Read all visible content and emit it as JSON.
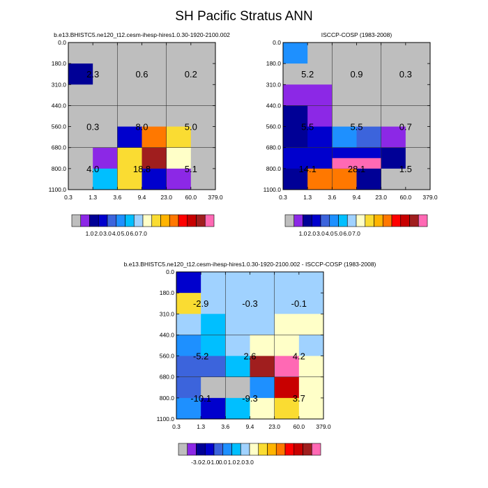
{
  "figure_title": "SH Pacific Stratus ANN",
  "chart_data": [
    {
      "type": "heatmap",
      "title": "b.e13.BHISTC5.ne120_t12.cesm-ihesp-hires1.0.30-1920-2100.002",
      "x_tick_labels": [
        "0.3",
        "1.3",
        "3.6",
        "9.4",
        "23.0",
        "60.0",
        "379.0"
      ],
      "y_tick_labels": [
        "0.0",
        "180.0",
        "310.0",
        "440.0",
        "560.0",
        "680.0",
        "800.0",
        "1100.0"
      ],
      "cells": [
        [
          "grey",
          "grey",
          "grey",
          "grey",
          "grey",
          "grey"
        ],
        [
          "navy",
          "grey",
          "grey",
          "grey",
          "grey",
          "grey"
        ],
        [
          "grey",
          "grey",
          "grey",
          "grey",
          "grey",
          "grey"
        ],
        [
          "grey",
          "grey",
          "grey",
          "grey",
          "grey",
          "grey"
        ],
        [
          "grey",
          "grey",
          "blue",
          "orange",
          "gold",
          "grey"
        ],
        [
          "grey",
          "purple",
          "gold",
          "darkred",
          "lightyellow",
          "grey"
        ],
        [
          "grey",
          "skyblue",
          "gold",
          "blue",
          "purple",
          "grey"
        ]
      ],
      "region_values": [
        [
          "2.3",
          "0.6",
          "0.2"
        ],
        [
          "0.3",
          "8.0",
          "5.0"
        ],
        [
          "4.0",
          "18.8",
          "5.1"
        ]
      ],
      "colorbar": {
        "colors": [
          "#bebebe",
          "#8c28e6",
          "#000096",
          "#0000cd",
          "#3c64dc",
          "#1e90ff",
          "#00bfff",
          "#a0d2ff",
          "#ffffc8",
          "#fadc32",
          "#ffb400",
          "#ff7800",
          "#ff0000",
          "#c80000",
          "#a01e1e",
          "#ff69b4"
        ],
        "labels": [
          "1.0",
          "2.0",
          "3.0",
          "4.0",
          "5.0",
          "6.0",
          "7.0"
        ]
      }
    },
    {
      "type": "heatmap",
      "title": "ISCCP-COSP (1983-2008)",
      "x_tick_labels": [
        "0.3",
        "1.3",
        "3.6",
        "9.4",
        "23.0",
        "60.0",
        "379.0"
      ],
      "y_tick_labels": [
        "0.0",
        "180.0",
        "310.0",
        "440.0",
        "560.0",
        "680.0",
        "800.0",
        "1100.0"
      ],
      "cells": [
        [
          "dodgerblue",
          "grey",
          "grey",
          "grey",
          "grey",
          "grey"
        ],
        [
          "grey",
          "grey",
          "grey",
          "grey",
          "grey",
          "grey"
        ],
        [
          "purple",
          "purple",
          "grey",
          "grey",
          "grey",
          "grey"
        ],
        [
          "navy",
          "purple",
          "grey",
          "grey",
          "grey",
          "grey"
        ],
        [
          "navy",
          "blue",
          "dodgerblue",
          "royalblue",
          "purple",
          "grey"
        ],
        [
          "blue",
          "blue",
          "blue",
          "blue",
          "navy",
          "grey"
        ],
        [
          "navy",
          "orange",
          "orange",
          "navy",
          "grey",
          "grey"
        ]
      ],
      "pink_overlay": true,
      "region_values": [
        [
          "5.2",
          "0.9",
          "0.3"
        ],
        [
          "5.5",
          "5.5",
          "0.7"
        ],
        [
          "14.1",
          "28.1",
          "1.5"
        ]
      ],
      "colorbar": {
        "colors": [
          "#bebebe",
          "#8c28e6",
          "#000096",
          "#0000cd",
          "#3c64dc",
          "#1e90ff",
          "#00bfff",
          "#a0d2ff",
          "#ffffc8",
          "#fadc32",
          "#ffb400",
          "#ff7800",
          "#ff0000",
          "#c80000",
          "#a01e1e",
          "#ff69b4"
        ],
        "labels": [
          "1.0",
          "2.0",
          "3.0",
          "4.0",
          "5.0",
          "6.0",
          "7.0"
        ]
      }
    },
    {
      "type": "heatmap",
      "title": "b.e13.BHISTC5.ne120_t12.cesm-ihesp-hires1.0.30-1920-2100.002 - ISCCP-COSP (1983-2008)",
      "x_tick_labels": [
        "0.3",
        "1.3",
        "3.6",
        "9.4",
        "23.0",
        "60.0",
        "379.0"
      ],
      "y_tick_labels": [
        "0.0",
        "180.0",
        "310.0",
        "440.0",
        "560.0",
        "680.0",
        "800.0",
        "1100.0"
      ],
      "cells": [
        [
          "blue",
          "lightblue",
          "lightblue",
          "lightblue",
          "lightblue",
          "lightblue"
        ],
        [
          "gold",
          "lightblue",
          "lightblue",
          "lightblue",
          "lightblue",
          "lightblue"
        ],
        [
          "lightblue",
          "deepskyblue",
          "lightblue",
          "lightblue",
          "lightyellow",
          "lightyellow"
        ],
        [
          "dodgerblue",
          "deepskyblue",
          "lightblue",
          "lightyellow",
          "lightyellow",
          "lightblue"
        ],
        [
          "royalblue",
          "royalblue",
          "deepskyblue",
          "darkred",
          "pink",
          "lightyellow"
        ],
        [
          "royalblue",
          "grey",
          "grey",
          "dodgerblue",
          "red",
          "lightyellow"
        ],
        [
          "dodgerblue",
          "blue",
          "deepskyblue",
          "lightyellow",
          "gold",
          "lightyellow"
        ]
      ],
      "region_values": [
        [
          "-2.9",
          "-0.3",
          "-0.1"
        ],
        [
          "-5.2",
          "2.6",
          "4.2"
        ],
        [
          "-10.1",
          "-9.3",
          "3.7"
        ]
      ],
      "colorbar": {
        "colors": [
          "#bebebe",
          "#8c28e6",
          "#000096",
          "#0000cd",
          "#3c64dc",
          "#1e90ff",
          "#00bfff",
          "#a0d2ff",
          "#ffffc8",
          "#fadc32",
          "#ffb400",
          "#ff7800",
          "#ff0000",
          "#c80000",
          "#a01e1e",
          "#ff69b4"
        ],
        "labels": [
          "-3.0",
          "-2.0",
          "-1.0",
          "0.0",
          "1.0",
          "2.0",
          "3.0"
        ]
      }
    }
  ],
  "palette": {
    "grey": "#bebebe",
    "navy": "#000096",
    "blue": "#0000cd",
    "royalblue": "#3c64dc",
    "dodgerblue": "#1e90ff",
    "deepskyblue": "#00bfff",
    "skyblue": "#00bfff",
    "lightblue": "#a0d2ff",
    "lightyellow": "#ffffc8",
    "gold": "#fadc32",
    "orange": "#ff7800",
    "red": "#c80000",
    "darkred": "#a01e1e",
    "purple": "#8c28e6",
    "pink": "#ff69b4"
  }
}
